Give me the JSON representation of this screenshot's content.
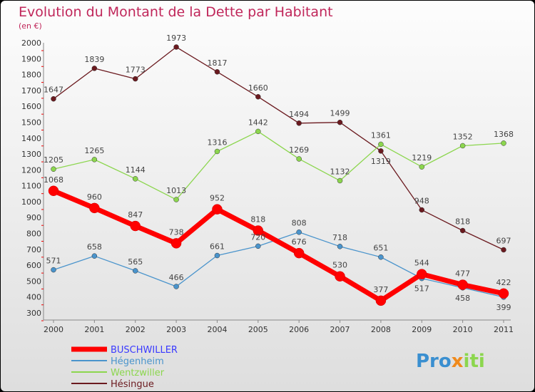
{
  "chart_data": {
    "type": "line",
    "title": "Evolution du Montant de la Dette par Habitant",
    "subtitle": "(en €)",
    "xlabel": "",
    "ylabel": "",
    "ylim": [
      300,
      2000
    ],
    "yticks": [
      300,
      400,
      500,
      600,
      700,
      800,
      900,
      1000,
      1100,
      1200,
      1300,
      1400,
      1500,
      1600,
      1700,
      1800,
      1900,
      2000
    ],
    "x": [
      "2000",
      "2001",
      "2002",
      "2003",
      "2004",
      "2005",
      "2006",
      "2007",
      "2008",
      "2009",
      "2010",
      "2011"
    ],
    "grid": false,
    "legend_placement": "bottom-left",
    "series": [
      {
        "name": "Hésingue",
        "color": "#6b1a1f",
        "width": 1.3,
        "values": [
          1647,
          1839,
          1773,
          1973,
          1817,
          1660,
          1494,
          1499,
          1319,
          948,
          818,
          697
        ]
      },
      {
        "name": "Wentzwiller",
        "color": "#8cd64e",
        "width": 1.3,
        "values": [
          1205,
          1265,
          1144,
          1013,
          1316,
          1442,
          1269,
          1132,
          1361,
          1219,
          1352,
          1368
        ]
      },
      {
        "name": "Hégenheim",
        "color": "#4a94cc",
        "width": 1.3,
        "values": [
          571,
          658,
          565,
          466,
          661,
          720,
          808,
          718,
          651,
          517,
          458,
          399
        ]
      },
      {
        "name": "BUSCHWILLER",
        "color": "#ff0000",
        "width": 7,
        "values": [
          1068,
          960,
          847,
          738,
          952,
          818,
          676,
          530,
          377,
          544,
          477,
          422
        ]
      }
    ],
    "legend_order": [
      "BUSCHWILLER",
      "Hégenheim",
      "Wentzwiller",
      "Hésingue"
    ]
  },
  "brand": "Proxiti"
}
